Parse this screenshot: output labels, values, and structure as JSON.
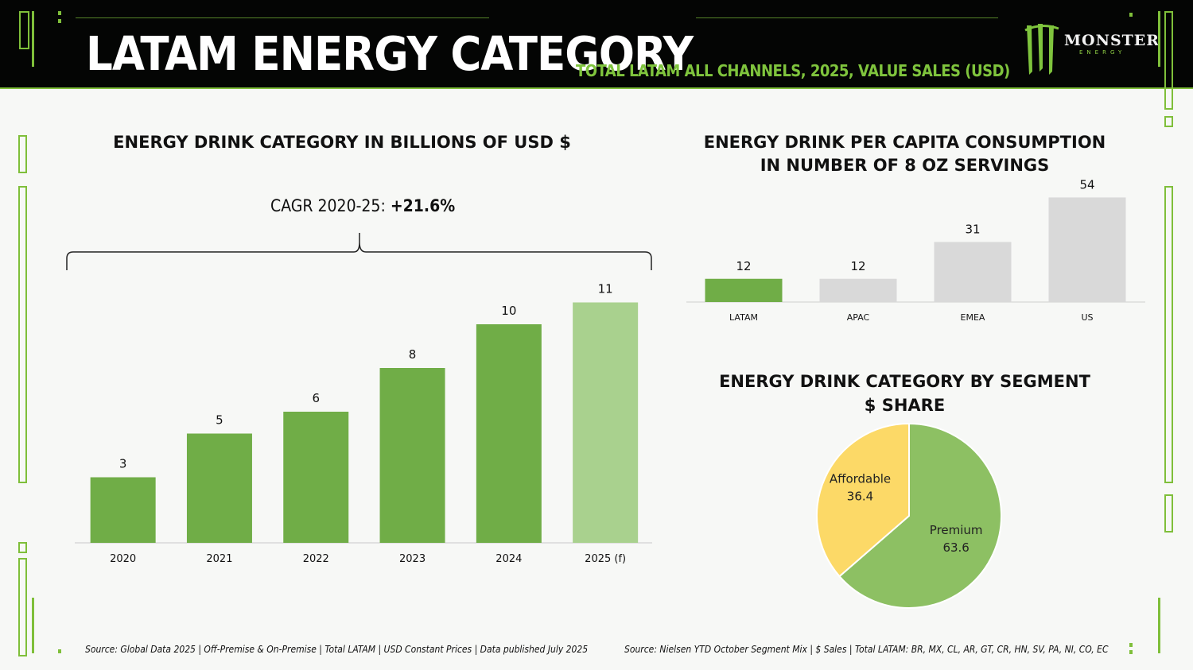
{
  "header": {
    "title": "LATAM ENERGY CATEGORY",
    "subtitle": "TOTAL LATAM ALL CHANNELS, 2025, VALUE SALES (USD)",
    "logo_text": "MONSTER",
    "logo_sub": "ENERGY"
  },
  "colors": {
    "accent": "#7fbf3a",
    "bar_green": "#70ad47",
    "bar_forecast": "#a9d18e",
    "bar_grey": "#d9d9d9",
    "pie_premium": "#8dc063",
    "pie_affordable": "#fcd967"
  },
  "annotation": {
    "cagr_label": "CAGR 2020-25: ",
    "cagr_value": "+21.6%"
  },
  "sources": {
    "left": "Source: Global Data 2025 | Off-Premise & On-Premise | Total LATAM | USD Constant Prices | Data published July 2025",
    "right": "Source: Nielsen YTD October Segment Mix | $ Sales | Total LATAM: BR, MX, CL, AR, GT, CR, HN, SV, PA, NI, CO, EC"
  },
  "chart_data": [
    {
      "type": "bar",
      "title": "ENERGY DRINK CATEGORY IN BILLIONS OF USD $",
      "categories": [
        "2020",
        "2021",
        "2022",
        "2023",
        "2024",
        "2025 (f)"
      ],
      "values": [
        3,
        5,
        6,
        8,
        10,
        11
      ],
      "xlabel": "",
      "ylabel": "",
      "ylim": [
        0,
        12
      ],
      "grid": false,
      "legend": "none"
    },
    {
      "type": "bar",
      "title_line1": "ENERGY DRINK PER CAPITA CONSUMPTION",
      "title_line2": "IN NUMBER OF 8 OZ SERVINGS",
      "categories": [
        "LATAM",
        "APAC",
        "EMEA",
        "US"
      ],
      "values": [
        12,
        12,
        31,
        54
      ],
      "ylim": [
        0,
        55
      ],
      "grid": false,
      "legend": "none"
    },
    {
      "type": "pie",
      "title_line1": "ENERGY DRINK CATEGORY BY SEGMENT",
      "title_line2": "$ SHARE",
      "slices": [
        {
          "label": "Affordable",
          "value": 36.4
        },
        {
          "label": "Premium",
          "value": 63.6
        }
      ],
      "legend": "none"
    }
  ]
}
